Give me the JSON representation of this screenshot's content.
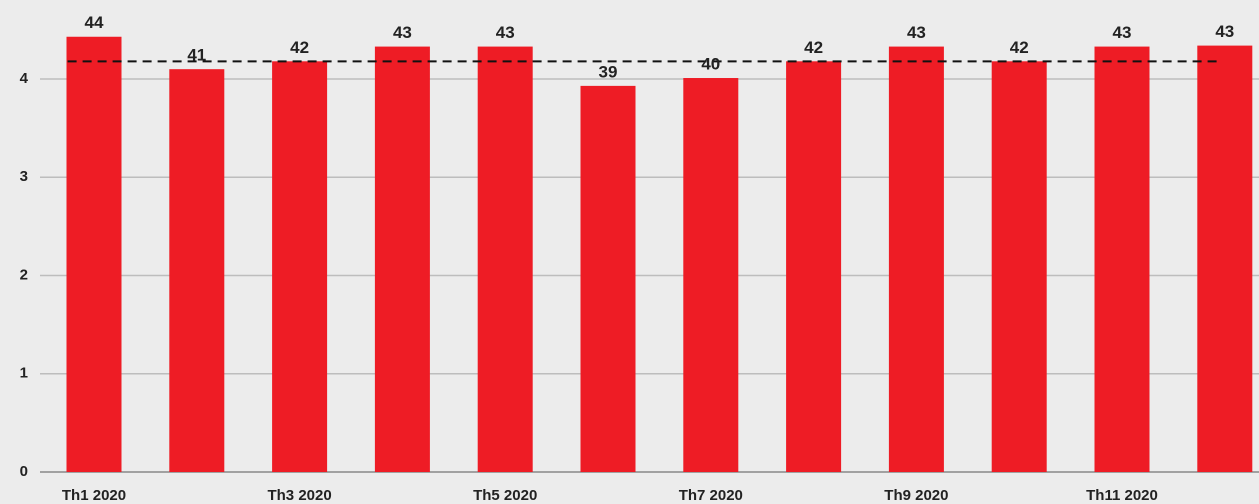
{
  "chart_data": {
    "type": "bar",
    "categories": [
      "Th1 2020",
      null,
      "Th3 2020",
      null,
      "Th5 2020",
      null,
      "Th7 2020",
      null,
      "Th9 2020",
      null,
      "Th11 2020",
      null
    ],
    "values": [
      4.43,
      4.1,
      4.18,
      4.33,
      4.33,
      3.93,
      4.01,
      4.18,
      4.33,
      4.18,
      4.33,
      4.34
    ],
    "value_labels": [
      "44",
      "41",
      "42",
      "43",
      "43",
      "39",
      "40",
      "42",
      "43",
      "42",
      "43",
      "43"
    ],
    "color": "#ee1c25",
    "reference_line": 4.18,
    "ylim": [
      0,
      4.8
    ],
    "yticks": [
      0,
      1,
      2,
      3,
      4
    ],
    "grid": true
  }
}
